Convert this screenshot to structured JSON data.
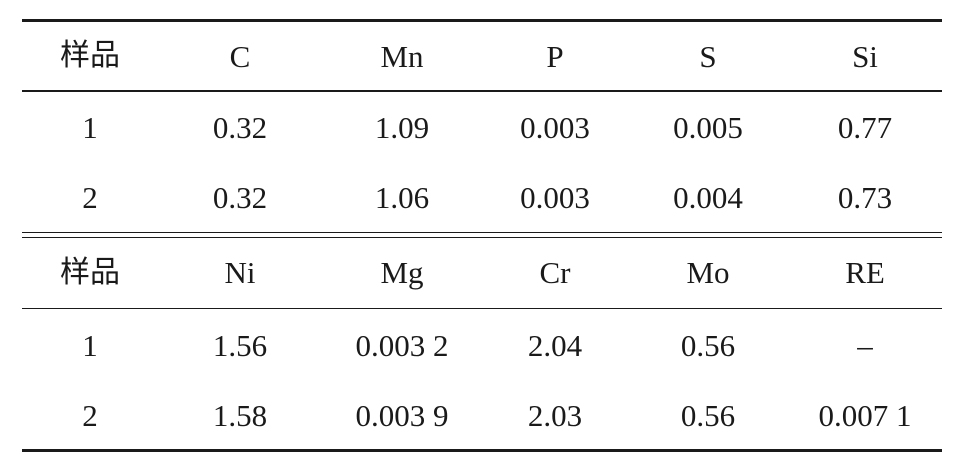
{
  "table": {
    "section1": {
      "header": [
        "样品",
        "C",
        "Mn",
        "P",
        "S",
        "Si"
      ],
      "rows": [
        [
          "1",
          "0.32",
          "1.09",
          "0.003",
          "0.005",
          "0.77"
        ],
        [
          "2",
          "0.32",
          "1.06",
          "0.003",
          "0.004",
          "0.73"
        ]
      ]
    },
    "section2": {
      "header": [
        "样品",
        "Ni",
        "Mg",
        "Cr",
        "Mo",
        "RE"
      ],
      "rows": [
        [
          "1",
          "1.56",
          "0.003 2",
          "2.04",
          "0.56",
          "–"
        ],
        [
          "2",
          "1.58",
          "0.003 9",
          "2.03",
          "0.56",
          "0.007 1"
        ]
      ]
    }
  }
}
